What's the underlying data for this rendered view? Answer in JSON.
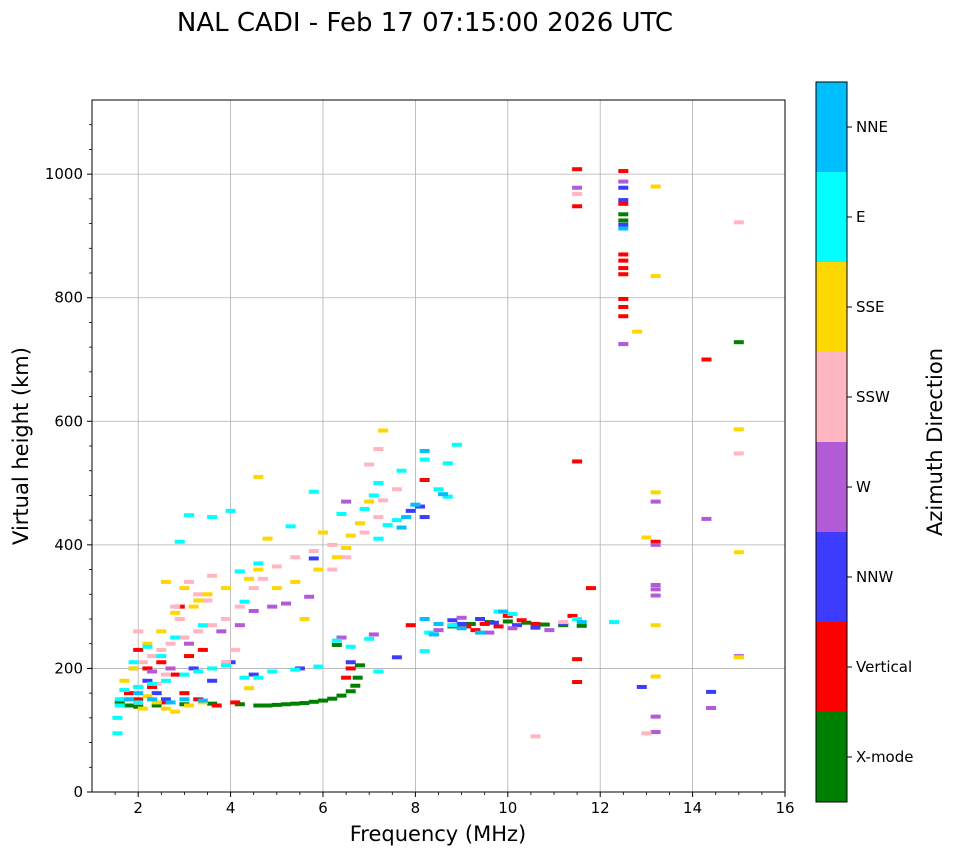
{
  "chart_data": {
    "type": "scatter",
    "title": "NAL CADI - Feb 17 07:15:00 2026 UTC",
    "xlabel": "Frequency (MHz)",
    "ylabel": "Virtual height (km)",
    "xlim": [
      1,
      16
    ],
    "ylim": [
      0,
      1120
    ],
    "xticks": [
      2,
      4,
      6,
      8,
      10,
      12,
      14,
      16
    ],
    "yticks": [
      0,
      200,
      400,
      600,
      800,
      1000
    ],
    "grid": true,
    "colorbar": {
      "label": "Azimuth Direction",
      "categories": [
        {
          "name": "X-mode",
          "color": "#008000"
        },
        {
          "name": "Vertical",
          "color": "#ff0000"
        },
        {
          "name": "NNW",
          "color": "#3c3cff"
        },
        {
          "name": "W",
          "color": "#b35ad6"
        },
        {
          "name": "SSW",
          "color": "#ffb6c1"
        },
        {
          "name": "SSE",
          "color": "#ffd700"
        },
        {
          "name": "E",
          "color": "#00ffff"
        },
        {
          "name": "NNE",
          "color": "#00bfff"
        }
      ]
    },
    "series": [
      {
        "name": "X-mode",
        "points": [
          [
            4.6,
            140
          ],
          [
            4.8,
            140
          ],
          [
            5.0,
            141
          ],
          [
            5.2,
            142
          ],
          [
            5.4,
            143
          ],
          [
            5.6,
            144
          ],
          [
            5.8,
            146
          ],
          [
            6.0,
            148
          ],
          [
            6.2,
            151
          ],
          [
            6.4,
            156
          ],
          [
            6.6,
            163
          ],
          [
            6.7,
            172
          ],
          [
            6.75,
            185
          ],
          [
            6.8,
            205
          ],
          [
            1.6,
            145
          ],
          [
            1.8,
            140
          ],
          [
            2.0,
            138
          ],
          [
            2.4,
            140
          ],
          [
            3.0,
            142
          ],
          [
            3.6,
            143
          ],
          [
            4.2,
            142
          ],
          [
            8.8,
            268
          ],
          [
            9.2,
            272
          ],
          [
            9.6,
            275
          ],
          [
            10.0,
            276
          ],
          [
            10.4,
            274
          ],
          [
            10.8,
            271
          ],
          [
            11.2,
            270
          ],
          [
            11.6,
            269
          ],
          [
            12.5,
            935
          ],
          [
            12.5,
            925
          ],
          [
            15.0,
            728
          ],
          [
            6.3,
            238
          ]
        ]
      },
      {
        "name": "Vertical",
        "points": [
          [
            11.5,
            1008
          ],
          [
            11.5,
            948
          ],
          [
            12.5,
            1005
          ],
          [
            12.5,
            870
          ],
          [
            12.5,
            860
          ],
          [
            12.5,
            848
          ],
          [
            12.5,
            838
          ],
          [
            12.5,
            798
          ],
          [
            12.5,
            785
          ],
          [
            12.5,
            770
          ],
          [
            12.5,
            952
          ],
          [
            14.3,
            700
          ],
          [
            11.5,
            535
          ],
          [
            11.8,
            330
          ],
          [
            11.5,
            215
          ],
          [
            11.5,
            178
          ],
          [
            13.2,
            405
          ],
          [
            7.9,
            270
          ],
          [
            8.9,
            270
          ],
          [
            9.1,
            268
          ],
          [
            9.3,
            262
          ],
          [
            9.5,
            272
          ],
          [
            9.8,
            268
          ],
          [
            10.0,
            285
          ],
          [
            10.3,
            278
          ],
          [
            10.6,
            272
          ],
          [
            11.4,
            285
          ],
          [
            6.6,
            200
          ],
          [
            6.5,
            185
          ],
          [
            8.2,
            505
          ],
          [
            1.8,
            160
          ],
          [
            2.0,
            150
          ],
          [
            2.3,
            170
          ],
          [
            2.6,
            145
          ],
          [
            3.0,
            160
          ],
          [
            3.3,
            150
          ],
          [
            3.7,
            140
          ],
          [
            4.1,
            145
          ],
          [
            2.2,
            200
          ],
          [
            2.5,
            210
          ],
          [
            2.8,
            190
          ],
          [
            3.1,
            220
          ],
          [
            3.4,
            230
          ],
          [
            2.0,
            230
          ],
          [
            2.9,
            300
          ]
        ]
      },
      {
        "name": "NNW",
        "points": [
          [
            12.5,
            958
          ],
          [
            12.5,
            978
          ],
          [
            12.5,
            918
          ],
          [
            12.9,
            170
          ],
          [
            14.4,
            162
          ],
          [
            8.8,
            278
          ],
          [
            9.0,
            272
          ],
          [
            9.4,
            280
          ],
          [
            9.7,
            274
          ],
          [
            10.2,
            270
          ],
          [
            10.6,
            266
          ],
          [
            11.2,
            272
          ],
          [
            7.9,
            455
          ],
          [
            8.1,
            462
          ],
          [
            8.2,
            445
          ],
          [
            7.6,
            218
          ],
          [
            6.6,
            210
          ],
          [
            5.5,
            200
          ],
          [
            4.5,
            190
          ],
          [
            3.6,
            180
          ],
          [
            2.6,
            150
          ],
          [
            2.4,
            160
          ],
          [
            3.2,
            200
          ],
          [
            4.0,
            210
          ],
          [
            2.2,
            180
          ],
          [
            1.9,
            200
          ],
          [
            5.8,
            378
          ]
        ]
      },
      {
        "name": "W",
        "points": [
          [
            11.5,
            978
          ],
          [
            12.5,
            988
          ],
          [
            12.5,
            725
          ],
          [
            13.2,
            470
          ],
          [
            13.2,
            400
          ],
          [
            13.2,
            335
          ],
          [
            13.2,
            328
          ],
          [
            13.2,
            318
          ],
          [
            13.2,
            122
          ],
          [
            13.2,
            97
          ],
          [
            14.3,
            442
          ],
          [
            14.4,
            136
          ],
          [
            15.0,
            220
          ],
          [
            9.6,
            258
          ],
          [
            10.1,
            265
          ],
          [
            10.9,
            262
          ],
          [
            9.0,
            282
          ],
          [
            8.5,
            262
          ],
          [
            6.5,
            470
          ],
          [
            5.7,
            316
          ],
          [
            5.2,
            305
          ],
          [
            4.9,
            300
          ],
          [
            4.5,
            293
          ],
          [
            4.2,
            270
          ],
          [
            3.8,
            260
          ],
          [
            3.1,
            240
          ],
          [
            2.7,
            200
          ],
          [
            2.3,
            195
          ],
          [
            1.7,
            150
          ],
          [
            6.4,
            250
          ],
          [
            7.1,
            255
          ]
        ]
      },
      {
        "name": "SSW",
        "points": [
          [
            11.5,
            968
          ],
          [
            15.0,
            922
          ],
          [
            15.0,
            548
          ],
          [
            13.0,
            95
          ],
          [
            10.6,
            90
          ],
          [
            11.2,
            275
          ],
          [
            7.3,
            472
          ],
          [
            7.6,
            490
          ],
          [
            7.2,
            445
          ],
          [
            6.9,
            420
          ],
          [
            6.2,
            400
          ],
          [
            5.8,
            390
          ],
          [
            5.4,
            380
          ],
          [
            5.0,
            365
          ],
          [
            4.7,
            345
          ],
          [
            4.5,
            330
          ],
          [
            4.2,
            300
          ],
          [
            3.9,
            280
          ],
          [
            3.6,
            270
          ],
          [
            3.3,
            260
          ],
          [
            3.0,
            250
          ],
          [
            2.7,
            240
          ],
          [
            2.5,
            230
          ],
          [
            2.3,
            220
          ],
          [
            2.1,
            210
          ],
          [
            2.9,
            280
          ],
          [
            3.3,
            320
          ],
          [
            3.6,
            350
          ],
          [
            2.6,
            190
          ],
          [
            2.4,
            175
          ],
          [
            3.9,
            210
          ],
          [
            4.1,
            230
          ],
          [
            2.0,
            260
          ],
          [
            7.2,
            555
          ],
          [
            7.0,
            530
          ],
          [
            6.5,
            380
          ],
          [
            6.2,
            360
          ],
          [
            3.5,
            310
          ],
          [
            2.8,
            300
          ],
          [
            3.1,
            340
          ]
        ]
      },
      {
        "name": "SSE",
        "points": [
          [
            13.2,
            980
          ],
          [
            13.2,
            835
          ],
          [
            12.8,
            745
          ],
          [
            13.2,
            485
          ],
          [
            13.0,
            412
          ],
          [
            13.2,
            270
          ],
          [
            13.2,
            187
          ],
          [
            15.0,
            587
          ],
          [
            15.0,
            388
          ],
          [
            15.0,
            218
          ],
          [
            7.3,
            585
          ],
          [
            7.2,
            500
          ],
          [
            7.0,
            470
          ],
          [
            6.8,
            435
          ],
          [
            6.6,
            415
          ],
          [
            6.5,
            395
          ],
          [
            6.3,
            380
          ],
          [
            5.9,
            360
          ],
          [
            5.4,
            340
          ],
          [
            5.0,
            330
          ],
          [
            4.6,
            360
          ],
          [
            4.4,
            345
          ],
          [
            3.9,
            330
          ],
          [
            3.5,
            320
          ],
          [
            3.2,
            300
          ],
          [
            2.8,
            290
          ],
          [
            2.5,
            260
          ],
          [
            2.2,
            240
          ],
          [
            1.9,
            200
          ],
          [
            1.7,
            180
          ],
          [
            2.0,
            170
          ],
          [
            2.2,
            155
          ],
          [
            2.4,
            145
          ],
          [
            2.6,
            135
          ],
          [
            2.8,
            130
          ],
          [
            3.1,
            140
          ],
          [
            3.4,
            145
          ],
          [
            4.4,
            168
          ],
          [
            4.8,
            410
          ],
          [
            5.6,
            280
          ],
          [
            4.6,
            510
          ],
          [
            2.6,
            340
          ],
          [
            3.0,
            330
          ],
          [
            3.3,
            310
          ],
          [
            1.8,
            150
          ],
          [
            2.1,
            135
          ],
          [
            6.0,
            420
          ]
        ]
      },
      {
        "name": "E",
        "points": [
          [
            12.3,
            275
          ],
          [
            11.5,
            280
          ],
          [
            9.8,
            292
          ],
          [
            10.1,
            288
          ],
          [
            8.8,
            270
          ],
          [
            8.3,
            258
          ],
          [
            8.2,
            228
          ],
          [
            8.9,
            562
          ],
          [
            8.7,
            532
          ],
          [
            8.2,
            538
          ],
          [
            8.7,
            478
          ],
          [
            8.5,
            490
          ],
          [
            7.6,
            440
          ],
          [
            7.4,
            432
          ],
          [
            7.2,
            410
          ],
          [
            7.7,
            520
          ],
          [
            7.2,
            500
          ],
          [
            7.1,
            480
          ],
          [
            6.9,
            458
          ],
          [
            6.4,
            450
          ],
          [
            5.8,
            486
          ],
          [
            5.3,
            430
          ],
          [
            4.6,
            370
          ],
          [
            4.2,
            357
          ],
          [
            4.0,
            455
          ],
          [
            3.6,
            445
          ],
          [
            3.1,
            448
          ],
          [
            2.9,
            405
          ],
          [
            4.3,
            308
          ],
          [
            4.3,
            185
          ],
          [
            4.6,
            185
          ],
          [
            4.9,
            195
          ],
          [
            5.4,
            198
          ],
          [
            5.9,
            203
          ],
          [
            6.6,
            235
          ],
          [
            7.0,
            248
          ],
          [
            7.2,
            195
          ],
          [
            6.3,
            245
          ],
          [
            3.9,
            205
          ],
          [
            3.6,
            200
          ],
          [
            3.3,
            195
          ],
          [
            3.0,
            190
          ],
          [
            2.6,
            180
          ],
          [
            2.3,
            175
          ],
          [
            2.0,
            170
          ],
          [
            1.7,
            165
          ],
          [
            1.6,
            150
          ],
          [
            1.6,
            140
          ],
          [
            1.55,
            120
          ],
          [
            1.55,
            95
          ],
          [
            2.0,
            145
          ],
          [
            3.4,
            270
          ],
          [
            2.8,
            250
          ],
          [
            2.2,
            235
          ],
          [
            1.9,
            210
          ],
          [
            2.5,
            220
          ]
        ]
      },
      {
        "name": "NNE",
        "points": [
          [
            12.5,
            912
          ],
          [
            8.2,
            552
          ],
          [
            8.6,
            482
          ],
          [
            8.0,
            465
          ],
          [
            7.8,
            445
          ],
          [
            7.7,
            428
          ],
          [
            8.2,
            280
          ],
          [
            8.5,
            272
          ],
          [
            9.0,
            265
          ],
          [
            9.4,
            258
          ],
          [
            9.9,
            292
          ],
          [
            11.6,
            275
          ],
          [
            8.4,
            255
          ],
          [
            1.8,
            150
          ],
          [
            2.0,
            160
          ],
          [
            2.3,
            150
          ],
          [
            2.7,
            145
          ],
          [
            3.0,
            150
          ],
          [
            3.4,
            148
          ]
        ]
      }
    ]
  }
}
